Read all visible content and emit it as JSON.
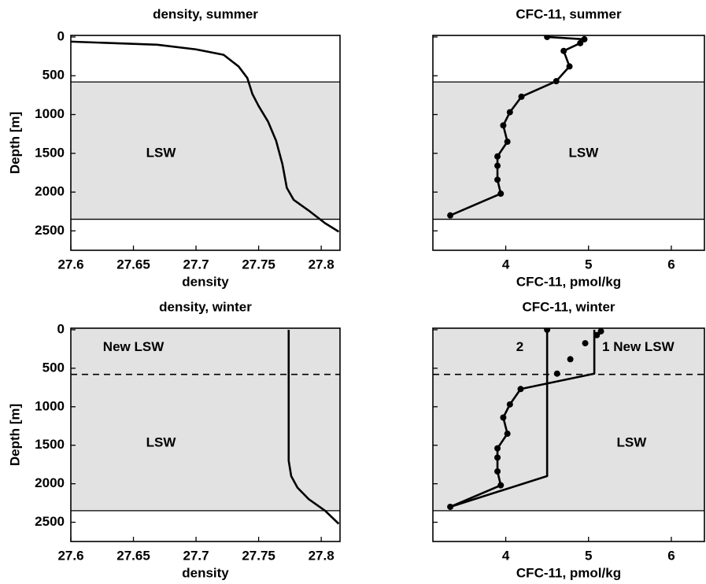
{
  "chart_data": [
    {
      "type": "line",
      "title": "density, summer",
      "x_label": "density",
      "y_label": "Depth [m]",
      "xlim": [
        27.6,
        27.815
      ],
      "xticks": [
        27.6,
        27.65,
        27.7,
        27.75,
        27.8
      ],
      "ylim": [
        -20,
        2750
      ],
      "yticks": [
        0,
        500,
        1000,
        1500,
        2000,
        2500
      ],
      "y_inverted": true,
      "ytick_labels": true,
      "bands": [
        {
          "from": 580,
          "to": 2350,
          "color": "#e2e2e2"
        }
      ],
      "hlines": [
        {
          "y": 580,
          "style": "solid"
        },
        {
          "y": 2350,
          "style": "solid"
        }
      ],
      "annotations": [
        {
          "text": "LSW",
          "x": 27.672,
          "y": 1500
        }
      ],
      "series": [
        {
          "color": "#000000",
          "markers": false,
          "x": [
            27.6,
            27.669,
            27.7,
            27.722,
            27.734,
            27.741,
            27.745,
            27.75,
            27.7575,
            27.764,
            27.769,
            27.7725,
            27.778,
            27.791,
            27.803,
            27.814
          ],
          "y": [
            60,
            100,
            160,
            230,
            380,
            530,
            735,
            890,
            1090,
            1340,
            1640,
            1945,
            2100,
            2250,
            2400,
            2510
          ]
        }
      ]
    },
    {
      "type": "line",
      "title": "CFC-11, summer",
      "x_label": "CFC-11, pmol/kg",
      "xlim": [
        3.12,
        6.4
      ],
      "xticks": [
        4,
        5,
        6
      ],
      "ylim": [
        -20,
        2750
      ],
      "yticks": [
        0,
        500,
        1000,
        1500,
        2000,
        2500
      ],
      "y_inverted": true,
      "ytick_labels": false,
      "bands": [
        {
          "from": 580,
          "to": 2350,
          "color": "#e2e2e2"
        }
      ],
      "hlines": [
        {
          "y": 580,
          "style": "solid"
        },
        {
          "y": 2350,
          "style": "solid"
        }
      ],
      "annotations": [
        {
          "text": "LSW",
          "x": 4.94,
          "y": 1500
        }
      ],
      "series": [
        {
          "color": "#000000",
          "markers": true,
          "x": [
            4.5,
            4.95,
            4.9,
            4.7,
            4.77,
            4.61,
            4.19,
            4.05,
            3.97,
            4.02,
            3.9,
            3.9,
            3.9,
            3.94,
            3.33
          ],
          "y": [
            0,
            30,
            80,
            180,
            380,
            570,
            770,
            970,
            1140,
            1350,
            1540,
            1660,
            1840,
            2020,
            2300
          ]
        }
      ]
    },
    {
      "type": "line",
      "title": "density, winter",
      "x_label": "density",
      "y_label": "Depth [m]",
      "xlim": [
        27.6,
        27.815
      ],
      "xticks": [
        27.6,
        27.65,
        27.7,
        27.75,
        27.8
      ],
      "ylim": [
        -20,
        2750
      ],
      "yticks": [
        0,
        500,
        1000,
        1500,
        2000,
        2500
      ],
      "y_inverted": true,
      "ytick_labels": true,
      "bands": [
        {
          "from": -20,
          "to": 2350,
          "color": "#e2e2e2"
        }
      ],
      "hlines": [
        {
          "y": 580,
          "style": "dashed"
        },
        {
          "y": 2350,
          "style": "solid"
        }
      ],
      "annotations": [
        {
          "text": "New LSW",
          "x": 27.65,
          "y": 230
        },
        {
          "text": "LSW",
          "x": 27.672,
          "y": 1470
        }
      ],
      "series": [
        {
          "color": "#000000",
          "markers": false,
          "x": [
            27.774,
            27.774,
            27.776,
            27.781,
            27.79,
            27.803,
            27.814
          ],
          "y": [
            0,
            1700,
            1900,
            2050,
            2200,
            2350,
            2520
          ]
        }
      ]
    },
    {
      "type": "line",
      "title": "CFC-11, winter",
      "x_label": "CFC-11, pmol/kg",
      "xlim": [
        3.12,
        6.4
      ],
      "xticks": [
        4,
        5,
        6
      ],
      "ylim": [
        -20,
        2750
      ],
      "yticks": [
        0,
        500,
        1000,
        1500,
        2000,
        2500
      ],
      "y_inverted": true,
      "ytick_labels": false,
      "bands": [
        {
          "from": -20,
          "to": 2350,
          "color": "#e2e2e2"
        }
      ],
      "hlines": [
        {
          "y": 580,
          "style": "dashed"
        },
        {
          "y": 2350,
          "style": "solid"
        }
      ],
      "annotations": [
        {
          "text": "2",
          "x": 4.17,
          "y": 230
        },
        {
          "text": "1 New LSW",
          "x": 5.6,
          "y": 230
        },
        {
          "text": "LSW",
          "x": 5.52,
          "y": 1470
        }
      ],
      "series": [
        {
          "color": "#000000",
          "markers": false,
          "x": [
            5.07,
            5.07,
            4.18,
            4.05,
            3.97,
            4.02,
            3.9,
            3.9,
            3.9,
            3.94,
            3.33
          ],
          "y": [
            0,
            570,
            770,
            970,
            1140,
            1350,
            1540,
            1660,
            1840,
            2020,
            2300
          ]
        },
        {
          "color": "#000000",
          "markers": false,
          "x": [
            4.5,
            4.5,
            3.33
          ],
          "y": [
            0,
            1900,
            2300
          ]
        },
        {
          "color": "#000000",
          "markers": true,
          "line": false,
          "x": [
            4.5,
            5.15,
            5.1,
            4.96,
            4.78,
            4.62,
            4.18,
            4.05,
            3.97,
            4.02,
            3.9,
            3.9,
            3.9,
            3.94,
            3.33
          ],
          "y": [
            0,
            20,
            70,
            175,
            383,
            570,
            770,
            970,
            1140,
            1350,
            1540,
            1660,
            1840,
            2020,
            2300
          ]
        }
      ]
    }
  ]
}
